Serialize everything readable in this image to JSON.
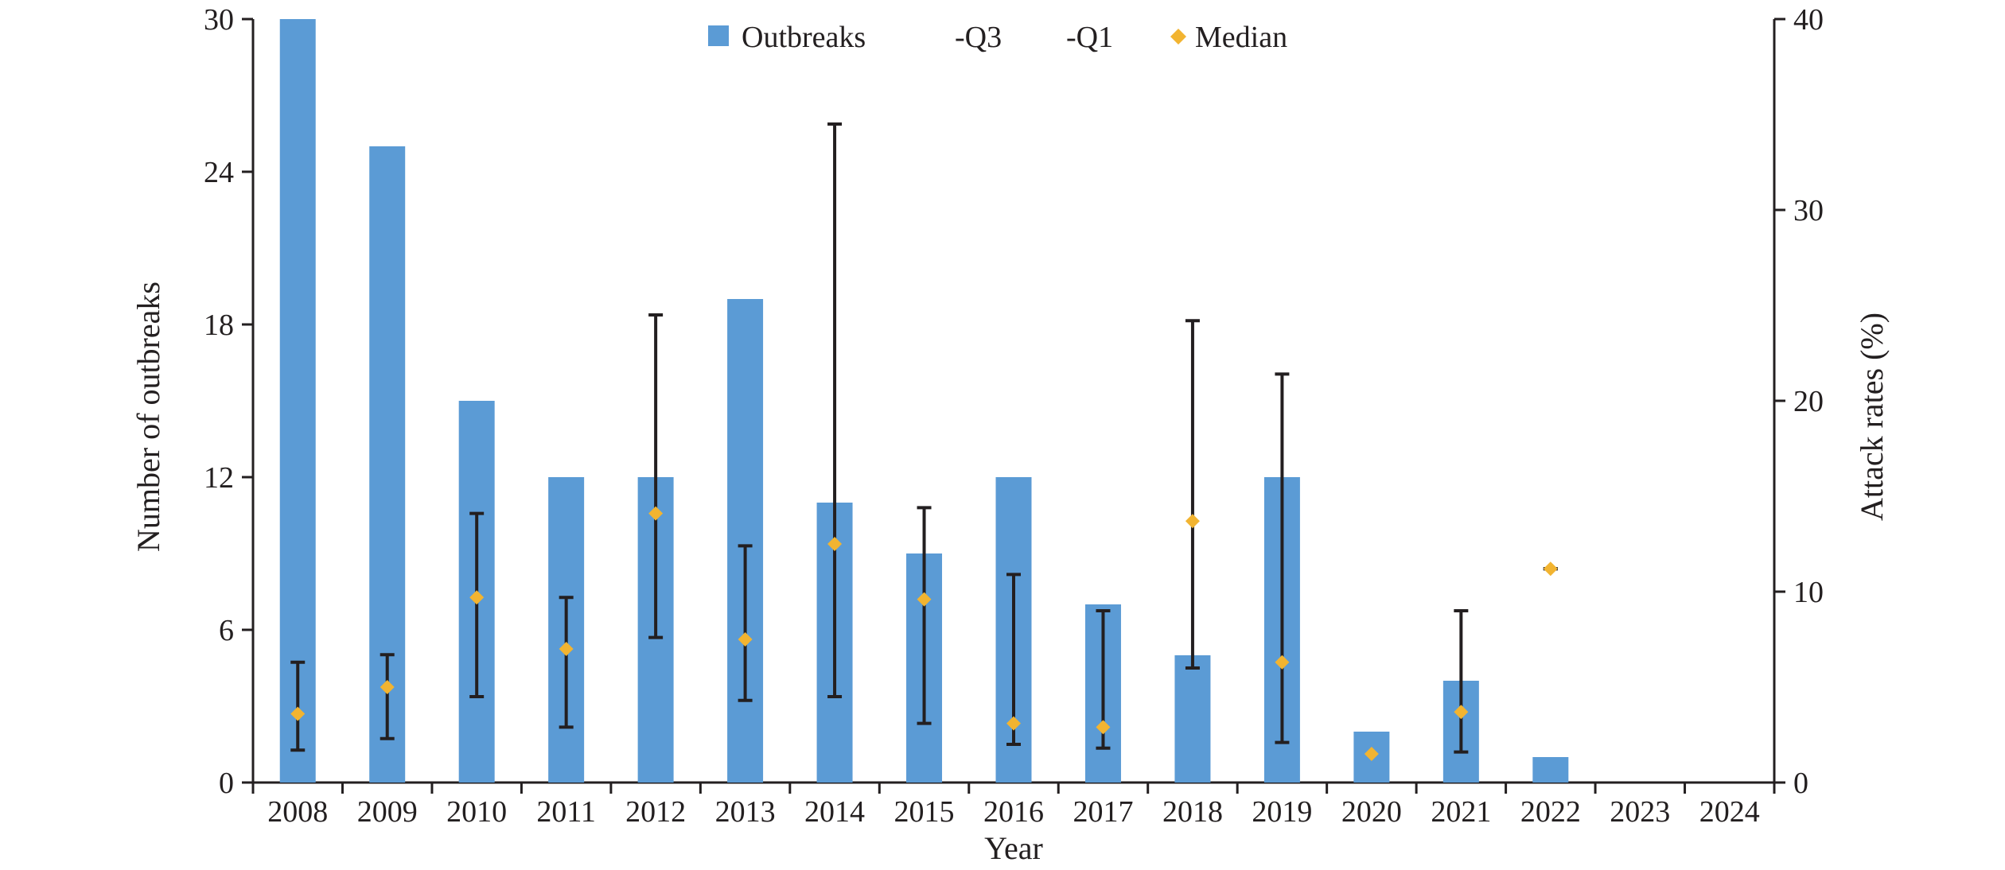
{
  "chart_data": {
    "type": "bar",
    "title": "",
    "categories": [
      "2008",
      "2009",
      "2010",
      "2011",
      "2012",
      "2013",
      "2014",
      "2015",
      "2016",
      "2017",
      "2018",
      "2019",
      "2020",
      "2021",
      "2022",
      "2023",
      "2024"
    ],
    "series": [
      {
        "name": "Outbreaks",
        "type": "bar",
        "axis": "left",
        "color": "#5b9bd5",
        "values": [
          30,
          25,
          15,
          12,
          12,
          19,
          11,
          9,
          12,
          7,
          5,
          12,
          2,
          4,
          1,
          0,
          0
        ]
      },
      {
        "name": "-Q3",
        "type": "error-bar-upper",
        "axis": "right",
        "color": "#231f20",
        "values": [
          6.3,
          6.7,
          14.1,
          9.7,
          24.5,
          12.4,
          34.5,
          14.4,
          10.9,
          9.0,
          24.2,
          21.4,
          null,
          9.0,
          11.2,
          null,
          null
        ]
      },
      {
        "name": "-Q1",
        "type": "error-bar-lower",
        "axis": "right",
        "color": "#231f20",
        "values": [
          1.7,
          2.3,
          4.5,
          2.9,
          7.6,
          4.3,
          4.5,
          3.1,
          2.0,
          1.8,
          6.0,
          2.1,
          null,
          1.6,
          11.2,
          null,
          null
        ]
      },
      {
        "name": "Median",
        "type": "scatter",
        "axis": "right",
        "color": "#f2b431",
        "marker": "diamond",
        "values": [
          3.6,
          5.0,
          9.7,
          7.0,
          14.1,
          7.5,
          12.5,
          9.6,
          3.1,
          2.9,
          13.7,
          6.3,
          1.5,
          3.7,
          11.2,
          null,
          null
        ]
      }
    ],
    "xlabel": "Year",
    "ylabel": "Number of outbreaks",
    "ylim": [
      0,
      30
    ],
    "yticks": [
      "0",
      "6",
      "12",
      "18",
      "24",
      "30"
    ],
    "y2label": "Attack rates (%)",
    "y2lim": [
      0,
      40
    ],
    "y2ticks": [
      "0",
      "10",
      "20",
      "30",
      "40"
    ],
    "legend": {
      "position": "top-center",
      "items": [
        {
          "label": "Outbreaks",
          "symbol": "square",
          "color": "#5b9bd5"
        },
        {
          "label": "-Q3",
          "symbol": "none",
          "color": "#231f20"
        },
        {
          "label": "-Q1",
          "symbol": "none",
          "color": "#231f20"
        },
        {
          "label": "Median",
          "symbol": "diamond",
          "color": "#f2b431"
        }
      ]
    },
    "grid": false
  }
}
